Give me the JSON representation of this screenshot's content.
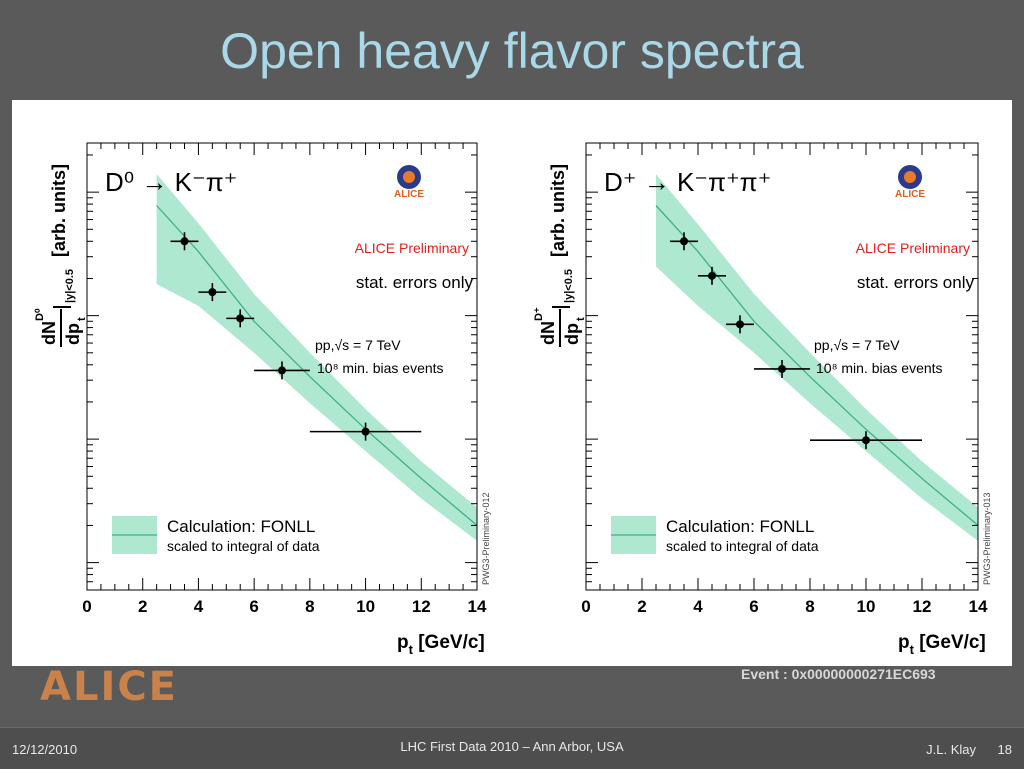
{
  "slide": {
    "title": "Open heavy flavor spectra",
    "logo": "ALICE",
    "event_label": "Event : 0x00000000271EC693",
    "footer": {
      "date": "12/12/2010",
      "conference": "LHC First Data 2010 – Ann Arbor, USA",
      "author": "J.L. Klay",
      "page": "18"
    }
  },
  "colors": {
    "band": "#7ad9b3",
    "line": "#3fb08a",
    "preliminary": "#e0201a"
  },
  "chart_data": [
    {
      "type": "scatter",
      "channel_label": "D⁰ → K⁻π⁺",
      "preliminary": "ALICE Preliminary",
      "logo_text": "ALICE",
      "errors_note": "stat. errors only",
      "energy_note": "pp,√s = 7 TeV",
      "events_note": "10⁸ min. bias events",
      "legend_label": "Calculation: FONLL",
      "legend_sublabel": "scaled to integral of data",
      "side_tag": "PWG3-Preliminary-012",
      "ylabel_units": "[arb. units]",
      "ylabel_num": "dN",
      "ylabel_num_sup": "D⁰",
      "ylabel_den": "dp",
      "ylabel_den_sub": "t",
      "ylabel_cond": "|y|<0.5",
      "xlabel": "p",
      "xlabel_sub": "t",
      "xlabel_units": "[GeV/c]",
      "xlim": [
        0,
        14
      ],
      "y_log": true,
      "xticks": [
        "0",
        "2",
        "4",
        "6",
        "8",
        "10",
        "12",
        "14"
      ],
      "points": [
        {
          "x": 3.5,
          "x_low": 3.0,
          "x_high": 4.0,
          "y": 0.4
        },
        {
          "x": 4.5,
          "x_low": 4.0,
          "x_high": 5.0,
          "y": 0.155
        },
        {
          "x": 5.5,
          "x_low": 5.0,
          "x_high": 6.0,
          "y": 0.095
        },
        {
          "x": 7.0,
          "x_low": 6.0,
          "x_high": 8.0,
          "y": 0.036
        },
        {
          "x": 10.0,
          "x_low": 8.0,
          "x_high": 12.0,
          "y": 0.0115
        }
      ],
      "fonll_band": [
        {
          "x": 2.5,
          "lo": 0.18,
          "hi": 1.4
        },
        {
          "x": 4,
          "lo": 0.12,
          "hi": 0.56
        },
        {
          "x": 6,
          "lo": 0.05,
          "hi": 0.15
        },
        {
          "x": 8,
          "lo": 0.0195,
          "hi": 0.05
        },
        {
          "x": 10,
          "lo": 0.008,
          "hi": 0.0175
        },
        {
          "x": 12,
          "lo": 0.0033,
          "hi": 0.0066
        },
        {
          "x": 14,
          "lo": 0.0015,
          "hi": 0.0028
        }
      ],
      "fonll_center": [
        {
          "x": 2.5,
          "y": 0.78
        },
        {
          "x": 4,
          "y": 0.33
        },
        {
          "x": 6,
          "y": 0.09
        },
        {
          "x": 8,
          "y": 0.032
        },
        {
          "x": 10,
          "y": 0.012
        },
        {
          "x": 12,
          "y": 0.0048
        },
        {
          "x": 14,
          "y": 0.002
        }
      ]
    },
    {
      "type": "scatter",
      "channel_label": "D⁺ → K⁻π⁺π⁺",
      "preliminary": "ALICE Preliminary",
      "logo_text": "ALICE",
      "errors_note": "stat. errors only",
      "energy_note": "pp,√s = 7 TeV",
      "events_note": "10⁸ min. bias events",
      "legend_label": "Calculation: FONLL",
      "legend_sublabel": "scaled to integral of data",
      "side_tag": "PWG3-Preliminary-013",
      "ylabel_units": "[arb. units]",
      "ylabel_num": "dN",
      "ylabel_num_sup": "D⁺",
      "ylabel_den": "dp",
      "ylabel_den_sub": "t",
      "ylabel_cond": "|y|<0.5",
      "xlabel": "p",
      "xlabel_sub": "t",
      "xlabel_units": "[GeV/c]",
      "xlim": [
        0,
        14
      ],
      "y_log": true,
      "xticks": [
        "0",
        "2",
        "4",
        "6",
        "8",
        "10",
        "12",
        "14"
      ],
      "points": [
        {
          "x": 3.5,
          "x_low": 3.0,
          "x_high": 4.0,
          "y": 0.4
        },
        {
          "x": 4.5,
          "x_low": 4.0,
          "x_high": 5.0,
          "y": 0.21
        },
        {
          "x": 5.5,
          "x_low": 5.0,
          "x_high": 6.0,
          "y": 0.085
        },
        {
          "x": 7.0,
          "x_low": 6.0,
          "x_high": 8.0,
          "y": 0.037
        },
        {
          "x": 10.0,
          "x_low": 8.0,
          "x_high": 12.0,
          "y": 0.0098
        }
      ],
      "fonll_band": [
        {
          "x": 2.5,
          "lo": 0.25,
          "hi": 1.4
        },
        {
          "x": 4,
          "lo": 0.12,
          "hi": 0.55
        },
        {
          "x": 6,
          "lo": 0.05,
          "hi": 0.15
        },
        {
          "x": 8,
          "lo": 0.0195,
          "hi": 0.05
        },
        {
          "x": 10,
          "lo": 0.008,
          "hi": 0.0175
        },
        {
          "x": 12,
          "lo": 0.0033,
          "hi": 0.0066
        },
        {
          "x": 14,
          "lo": 0.0015,
          "hi": 0.0028
        }
      ],
      "fonll_center": [
        {
          "x": 2.5,
          "y": 0.78
        },
        {
          "x": 4,
          "y": 0.33
        },
        {
          "x": 6,
          "y": 0.09
        },
        {
          "x": 8,
          "y": 0.032
        },
        {
          "x": 10,
          "y": 0.012
        },
        {
          "x": 12,
          "y": 0.0048
        },
        {
          "x": 14,
          "y": 0.002
        }
      ]
    }
  ]
}
